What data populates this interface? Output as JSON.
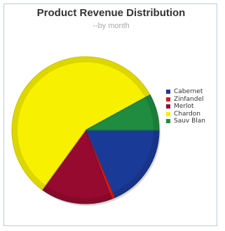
{
  "chart_data": {
    "type": "pie",
    "title": "Product Revenue Distribution",
    "subtitle": "--by month",
    "legend_position": "right",
    "categories": [
      "Cabernet",
      "Zinfandel",
      "Merlot",
      "Chardon",
      "Sauv Blan"
    ],
    "values": [
      18.5,
      0.7,
      15.8,
      57,
      8
    ],
    "colors": [
      "#1a3a98",
      "#d81b1b",
      "#960a30",
      "#f7f000",
      "#1f8c3f"
    ]
  }
}
